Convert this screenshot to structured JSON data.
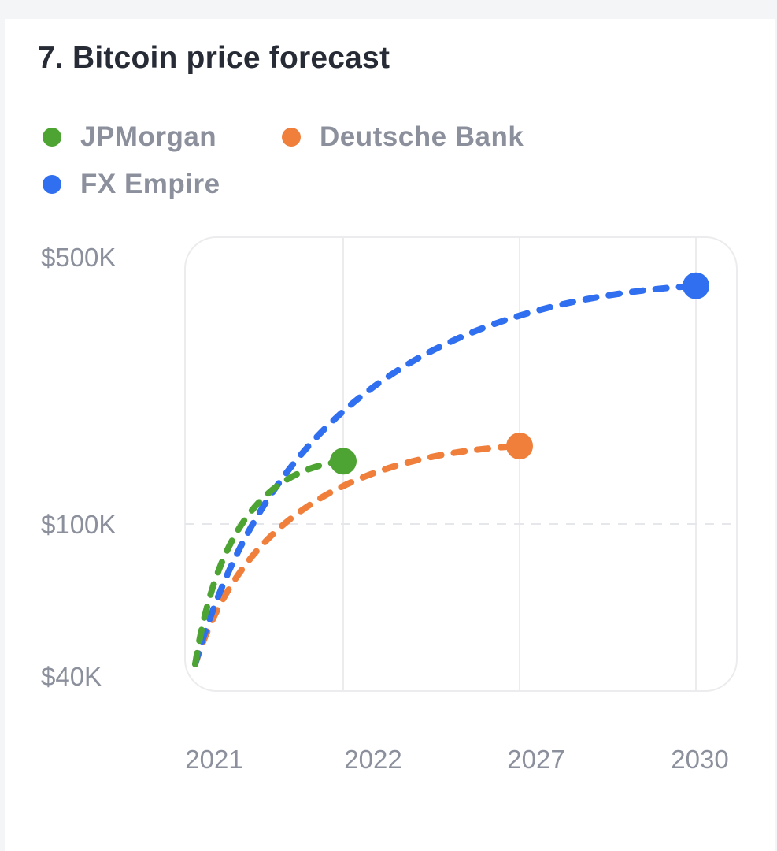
{
  "chart_data": {
    "type": "line",
    "title": "7. Bitcoin price forecast",
    "x_categories": [
      "2021",
      "2022",
      "2027",
      "2030"
    ],
    "y_scale": "log",
    "ylim": [
      40000,
      500000
    ],
    "y_ticks": [
      {
        "value": 500000,
        "label": "$500K"
      },
      {
        "value": 100000,
        "label": "$100K"
      },
      {
        "value": 40000,
        "label": "$40K"
      }
    ],
    "legend_position": "top-left",
    "series": [
      {
        "name": "JPMorgan",
        "color": "#4ea432",
        "start_value": 43000,
        "end_category": "2022",
        "end_value": 146000
      },
      {
        "name": "Deutsche Bank",
        "color": "#f07f3c",
        "start_value": 43000,
        "end_category": "2027",
        "end_value": 160000
      },
      {
        "name": "FX Empire",
        "color": "#2f6ff0",
        "start_value": 43000,
        "end_category": "2030",
        "end_value": 420000
      }
    ]
  }
}
